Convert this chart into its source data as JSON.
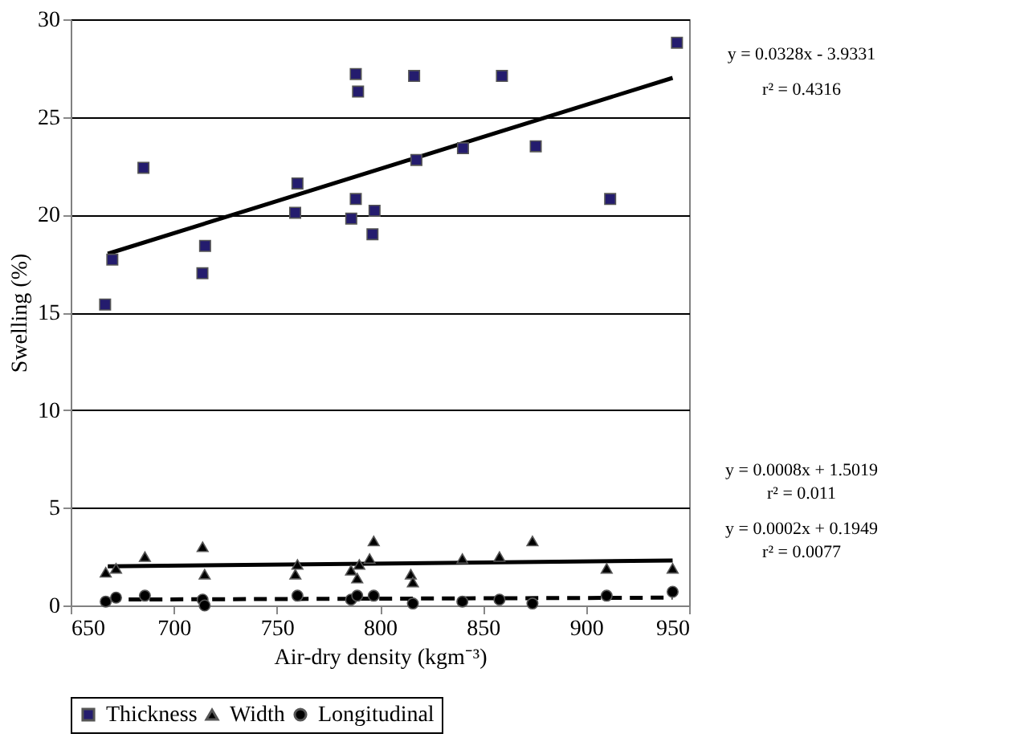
{
  "chart_data": {
    "type": "scatter",
    "xlabel": "Air-dry density (kgm⁻³)",
    "ylabel": "Swelling (%)",
    "xlim": [
      650,
      950
    ],
    "xticks": [
      650,
      700,
      750,
      800,
      850,
      900,
      950
    ],
    "ylim": [
      0,
      30
    ],
    "yticks": [
      0,
      5,
      10,
      15,
      20,
      25,
      30
    ],
    "grid": "y",
    "legend": "bottom",
    "series": [
      {
        "name": "Thickness",
        "marker": "square",
        "color": "#241c6e",
        "x": [
          666.7,
          670.2,
          685.3,
          715.2,
          713.9,
          760,
          758.9,
          788.3,
          789.4,
          788.3,
          786.1,
          797.4,
          796.4,
          816.6,
          817.7,
          840.3,
          859.2,
          875.6,
          911.7,
          944.1
        ],
        "values": [
          15.4,
          17.7,
          22.4,
          18.4,
          17.0,
          21.6,
          20.1,
          27.2,
          26.3,
          20.8,
          19.8,
          20.2,
          19.0,
          27.1,
          22.8,
          23.4,
          27.1,
          23.5,
          20.8,
          28.8
        ]
      },
      {
        "name": "Width",
        "marker": "triangle",
        "color": "#000000",
        "x": [
          667,
          672,
          686,
          714,
          715,
          760,
          759,
          786,
          789,
          790,
          797,
          795,
          815,
          816,
          840,
          858,
          874,
          910,
          942
        ],
        "values": [
          1.7,
          1.9,
          2.5,
          3.0,
          1.6,
          2.1,
          1.6,
          1.8,
          1.4,
          2.1,
          3.3,
          2.4,
          1.6,
          1.2,
          2.4,
          2.5,
          3.3,
          1.9,
          1.9
        ]
      },
      {
        "name": "Longitudinal",
        "marker": "circle",
        "color": "#000000",
        "x": [
          667,
          672,
          686,
          714,
          715,
          760,
          786,
          789,
          797,
          816,
          840,
          858,
          874,
          910,
          942
        ],
        "values": [
          0.2,
          0.4,
          0.5,
          0.3,
          0.0,
          0.5,
          0.3,
          0.5,
          0.5,
          0.1,
          0.2,
          0.3,
          0.1,
          0.5,
          0.7
        ]
      },
      {
        "type": "line",
        "line_style": "solid",
        "color": "#000000",
        "x": [
          668,
          942
        ],
        "values": [
          18,
          27
        ]
      },
      {
        "type": "line",
        "line_style": "solid",
        "color": "#000000",
        "x": [
          668,
          942
        ],
        "values": [
          2.0,
          2.3
        ]
      },
      {
        "type": "line",
        "line_style": "dashed",
        "color": "#000000",
        "x": [
          668,
          942
        ],
        "values": [
          0.3,
          0.4
        ]
      }
    ],
    "annotations": [
      "y = 0.0328x - 3.9331",
      "r² = 0.4316",
      "y = 0.0008x + 1.5019",
      "r² = 0.011",
      "y = 0.0002x + 0.1949",
      "r² = 0.0077"
    ]
  }
}
